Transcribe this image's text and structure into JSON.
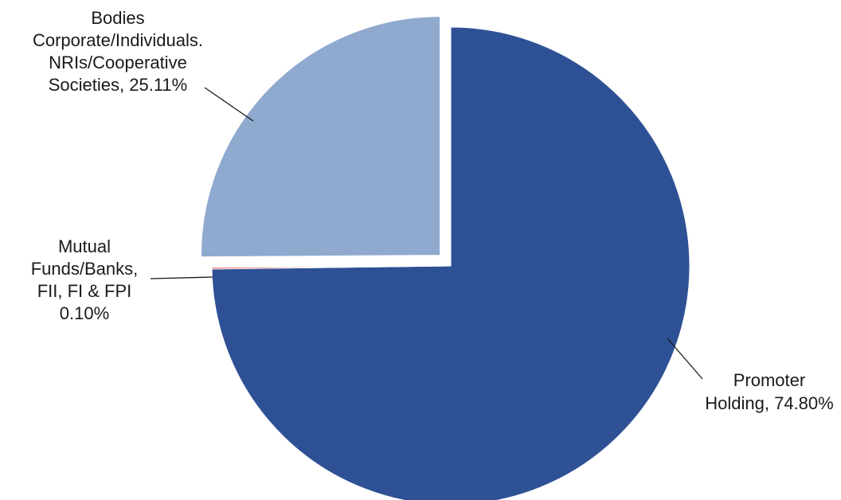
{
  "chart_data": {
    "type": "pie",
    "title": "",
    "legend": "none",
    "slices": [
      {
        "name": "Promoter Holding",
        "value": 74.8,
        "color": "#2E5195",
        "exploded": false,
        "label_lines": [
          "Promoter",
          "Holding, 74.80%"
        ]
      },
      {
        "name": "Mutual Funds/Banks, FII, FI & FPI",
        "value": 0.1,
        "color": "#D9312B",
        "exploded": false,
        "label_lines": [
          "Mutual",
          "Funds/Banks,",
          "FII, FI & FPI",
          "0.10%"
        ]
      },
      {
        "name": "Bodies Corporate/Individuals. NRIs/Cooperative Societies",
        "value": 25.11,
        "color": "#8FA9CF",
        "exploded": true,
        "label_lines": [
          "Bodies",
          "Corporate/Individuals.",
          "NRIs/Cooperative",
          "Societies, 25.11%"
        ]
      }
    ]
  }
}
